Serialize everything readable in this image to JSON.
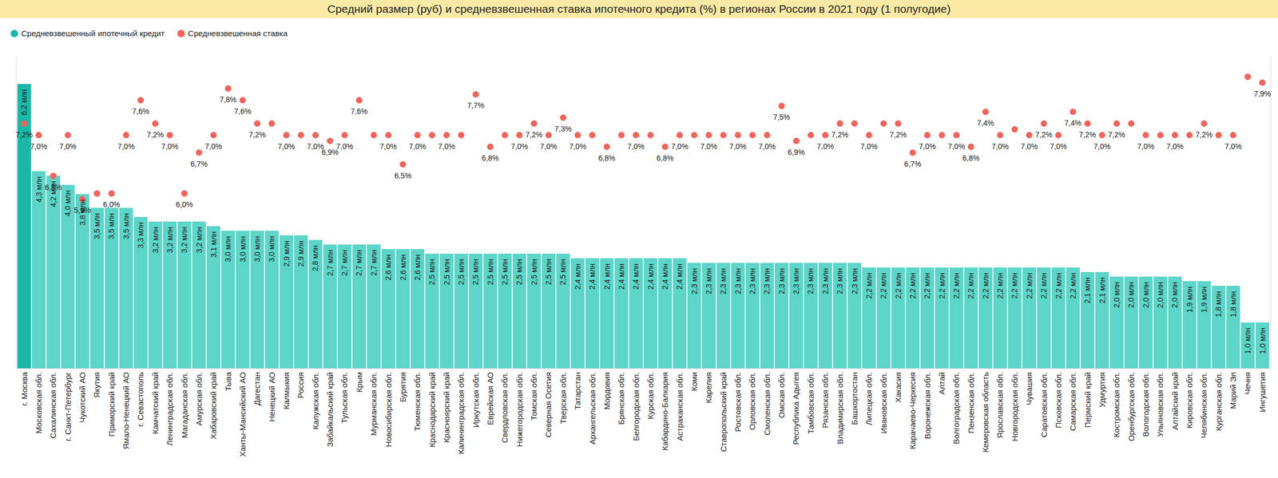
{
  "chart_data": {
    "type": "bar",
    "title": "Средний размер (руб) и средневзвешенная ставка ипотечного кредита (%) в регионах России в 2021 году (1 полугодие)",
    "categories": [
      "г. Москва",
      "Московская обл.",
      "Сахалинская обл.",
      "г. Санкт-Петербург",
      "Чукотский АО",
      "Якутия",
      "Приморский край",
      "Ямало-Ненецкий АО",
      "г. Севастополь",
      "Камчатский край",
      "Ленинградская обл.",
      "Магаданская обл.",
      "Амурская обл.",
      "Хабаровский край",
      "Тыва",
      "Ханты-Мансийский АО",
      "Дагестан",
      "Ненецкий АО",
      "Калмыкия",
      "Россия",
      "Калужская обл.",
      "Забайкальский край",
      "Тульская обл.",
      "Крым",
      "Мурманская обл.",
      "Новосибирская обл.",
      "Бурятия",
      "Тюменская обл.",
      "Краснодарский край",
      "Красноярский край",
      "Калининградская обл.",
      "Иркутская обл.",
      "Еврейская АО",
      "Свердловская обл.",
      "Нижегородская обл.",
      "Томская обл.",
      "Северная Осетия",
      "Тверская обл.",
      "Татарстан",
      "Архангельская обл.",
      "Мордовия",
      "Брянская обл.",
      "Белгородская обл.",
      "Курская обл.",
      "Кабардино-Балкария",
      "Астраханская обл.",
      "Коми",
      "Карелия",
      "Ставропольский край",
      "Ростовская обл.",
      "Орловская обл.",
      "Смоленская обл.",
      "Омская обл.",
      "Республика Адыгея",
      "Тамбовская обл.",
      "Рязанская обл.",
      "Владимирская обл.",
      "Башкортостан",
      "Липецкая обл.",
      "Ивановская обл.",
      "Хакасия",
      "Карачаево-Черкесия",
      "Воронежская обл.",
      "Алтай",
      "Волгоградская обл.",
      "Пензенская обл.",
      "Кемеровская область",
      "Ярославская обл.",
      "Новгородская обл.",
      "Чувашия",
      "Саратовская обл.",
      "Псковская обл.",
      "Самарская обл.",
      "Пермский край",
      "Удмуртия",
      "Костромская обл.",
      "Оренбургская обл.",
      "Вологодская обл.",
      "Ульяновская обл.",
      "Алтайский край",
      "Кировская обл.",
      "Челябинская обл.",
      "Курганская обл.",
      "Марий Эл",
      "Чечня",
      "Ингушетия"
    ],
    "series": [
      {
        "name": "Средневзвешенный ипотечный кредит",
        "type": "bar",
        "color": "#1bb8a8",
        "colors": [
          "#1bb8a8",
          "#5dd5c9",
          "#5dd5c9",
          "#5dd5c9",
          "#5dd5c9",
          "#5dd5c9",
          "#5dd5c9",
          "#5dd5c9",
          "#5dd5c9",
          "#5dd5c9",
          "#5dd5c9",
          "#5dd5c9",
          "#5dd5c9",
          "#5dd5c9",
          "#5dd5c9",
          "#5dd5c9",
          "#5dd5c9",
          "#5dd5c9",
          "#5dd5c9",
          "#5dd5c9",
          "#5dd5c9",
          "#5dd5c9",
          "#5dd5c9",
          "#5dd5c9",
          "#5dd5c9",
          "#5dd5c9",
          "#5dd5c9",
          "#5dd5c9",
          "#5dd5c9",
          "#5dd5c9",
          "#5dd5c9",
          "#5dd5c9",
          "#5dd5c9",
          "#5dd5c9",
          "#5dd5c9",
          "#5dd5c9",
          "#5dd5c9",
          "#5dd5c9",
          "#5dd5c9",
          "#5dd5c9",
          "#5dd5c9",
          "#5dd5c9",
          "#5dd5c9",
          "#5dd5c9",
          "#5dd5c9",
          "#5dd5c9",
          "#5dd5c9",
          "#5dd5c9",
          "#5dd5c9",
          "#5dd5c9",
          "#5dd5c9",
          "#5dd5c9",
          "#5dd5c9",
          "#5dd5c9",
          "#5dd5c9",
          "#5dd5c9",
          "#5dd5c9",
          "#5dd5c9",
          "#5dd5c9",
          "#5dd5c9",
          "#5dd5c9",
          "#5dd5c9",
          "#5dd5c9",
          "#5dd5c9",
          "#5dd5c9",
          "#5dd5c9",
          "#5dd5c9",
          "#5dd5c9",
          "#5dd5c9",
          "#5dd5c9",
          "#5dd5c9",
          "#5dd5c9",
          "#5dd5c9",
          "#5dd5c9",
          "#5dd5c9",
          "#5dd5c9",
          "#5dd5c9",
          "#5dd5c9",
          "#5dd5c9",
          "#5dd5c9",
          "#5dd5c9",
          "#5dd5c9",
          "#5dd5c9",
          "#5dd5c9",
          "#5dd5c9",
          "#5dd5c9"
        ],
        "values": [
          6.2,
          4.3,
          4.2,
          4.0,
          3.8,
          3.5,
          3.5,
          3.5,
          3.3,
          3.2,
          3.2,
          3.2,
          3.2,
          3.1,
          3.0,
          3.0,
          3.0,
          3.0,
          2.9,
          2.9,
          2.8,
          2.7,
          2.7,
          2.7,
          2.7,
          2.6,
          2.6,
          2.6,
          2.5,
          2.5,
          2.5,
          2.5,
          2.5,
          2.5,
          2.5,
          2.5,
          2.5,
          2.5,
          2.4,
          2.4,
          2.4,
          2.4,
          2.4,
          2.4,
          2.4,
          2.4,
          2.3,
          2.3,
          2.3,
          2.3,
          2.3,
          2.3,
          2.3,
          2.3,
          2.3,
          2.3,
          2.3,
          2.3,
          2.2,
          2.2,
          2.2,
          2.2,
          2.2,
          2.2,
          2.2,
          2.2,
          2.2,
          2.2,
          2.2,
          2.2,
          2.2,
          2.2,
          2.2,
          2.1,
          2.1,
          2.0,
          2.0,
          2.0,
          2.0,
          2.0,
          1.9,
          1.9,
          1.8,
          1.8,
          1.0,
          1.0
        ],
        "value_labels": [
          "6,2 млн",
          "4,3 млн",
          "4,2 млн",
          "4,0 млн",
          "3,8 млн",
          "3,5 млн",
          "3,5 млн",
          "3,5 млн",
          "3,3 млн",
          "3,2 млн",
          "3,2 млн",
          "3,2 млн",
          "3,2 млн",
          "3,1 млн",
          "3,0 млн",
          "3,0 млн",
          "3,0 млн",
          "3,0 млн",
          "2,9 млн",
          "2,9 млн",
          "2,8 млн",
          "2,7 млн",
          "2,7 млн",
          "2,7 млн",
          "2,7 млн",
          "2,6 млн",
          "2,6 млн",
          "2,6 млн",
          "2,5 млн",
          "2,5 млн",
          "2,5 млн",
          "2,5 млн",
          "2,5 млн",
          "2,5 млн",
          "2,5 млн",
          "2,5 млн",
          "2,5 млн",
          "2,5 млн",
          "2,4 млн",
          "2,4 млн",
          "2,4 млн",
          "2,4 млн",
          "2,4 млн",
          "2,4 млн",
          "2,4 млн",
          "2,4 млн",
          "2,3 млн",
          "2,3 млн",
          "2,3 млн",
          "2,3 млн",
          "2,3 млн",
          "2,3 млн",
          "2,3 млн",
          "2,3 млн",
          "2,3 млн",
          "2,3 млн",
          "2,3 млн",
          "2,3 млн",
          "2,2 млн",
          "2,2 млн",
          "2,2 млн",
          "2,2 млн",
          "2,2 млн",
          "2,2 млн",
          "2,2 млн",
          "2,2 млн",
          "2,2 млн",
          "2,2 млн",
          "2,2 млн",
          "2,2 млн",
          "2,2 млн",
          "2,2 млн",
          "2,2 млн",
          "2,1 млн",
          "2,1 млн",
          "2,0 млн",
          "2,0 млн",
          "2,0 млн",
          "2,0 млн",
          "2,0 млн",
          "1,9 млн",
          "1,9 млн",
          "1,8 млн",
          "1,8 млн",
          "1,0 млн",
          "1,0 млн"
        ]
      },
      {
        "name": "Средневзвешенная ставка",
        "type": "scatter",
        "color": "#f0645c",
        "marker": "circle",
        "axis": "y2",
        "values": [
          7.2,
          7.0,
          6.3,
          7.0,
          5.9,
          6.0,
          6.0,
          7.0,
          7.6,
          7.2,
          7.0,
          6.0,
          6.7,
          7.0,
          7.8,
          7.6,
          7.2,
          7.2,
          7.0,
          7.0,
          7.0,
          6.9,
          7.0,
          7.6,
          7.0,
          7.0,
          6.5,
          7.0,
          7.0,
          7.0,
          7.0,
          7.7,
          6.8,
          7.0,
          7.0,
          7.2,
          7.0,
          7.3,
          7.0,
          7.0,
          6.8,
          7.0,
          7.0,
          7.0,
          6.8,
          7.0,
          7.0,
          7.0,
          7.0,
          7.0,
          7.0,
          7.0,
          7.5,
          6.9,
          7.0,
          7.0,
          7.2,
          7.2,
          7.0,
          7.2,
          7.2,
          6.7,
          7.0,
          7.0,
          7.0,
          6.8,
          7.4,
          7.0,
          7.1,
          7.0,
          7.2,
          7.0,
          7.4,
          7.2,
          7.0,
          7.2,
          7.2,
          7.0,
          7.0,
          7.0,
          7.0,
          7.2,
          7.0,
          7.0,
          8.0,
          7.9
        ],
        "value_labels": [
          "7,2%",
          "7,0%",
          "6,3%",
          "7,0%",
          "5,9%",
          null,
          "6,0%",
          "7,0%",
          "7,6%",
          "7,2%",
          "7,0%",
          "6,0%",
          "6,7%",
          "7,0%",
          "7,8%",
          "7,6%",
          "7,2%",
          null,
          "7,0%",
          null,
          "7,0%",
          "6,9%",
          "7,0%",
          "7,6%",
          null,
          "7,0%",
          "6,5%",
          "7,0%",
          null,
          "7,0%",
          null,
          "7,7%",
          "6,8%",
          null,
          "7,0%",
          "7,2%",
          "7,0%",
          "7,3%",
          "7,0%",
          null,
          "6,8%",
          null,
          "7,0%",
          null,
          "6,8%",
          "7,0%",
          null,
          "7,0%",
          null,
          "7,0%",
          null,
          "7,0%",
          "7,5%",
          "6,9%",
          null,
          "7,0%",
          "7,2%",
          null,
          "7,0%",
          null,
          "7,2%",
          "6,7%",
          "7,0%",
          null,
          "7,0%",
          "6,8%",
          "7,4%",
          "7,0%",
          null,
          "7,0%",
          "7,2%",
          "7,0%",
          "7,4%",
          "7,2%",
          "7,0%",
          "7,2%",
          null,
          "7,0%",
          null,
          "7,0%",
          null,
          "7,2%",
          null,
          "7,0%",
          null,
          "7,9%"
        ]
      }
    ],
    "ylim": [
      0,
      6.8
    ],
    "y2lim": [
      3,
      8.35
    ],
    "legend": "top-left",
    "data_labels": true,
    "tick_labels": false,
    "grid": false
  }
}
